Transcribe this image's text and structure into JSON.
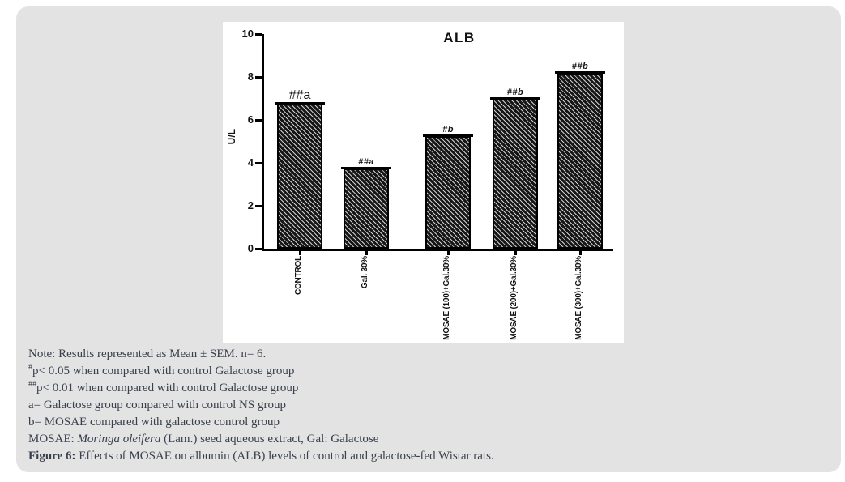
{
  "colors": {
    "page_bg": "#ffffff",
    "card_bg": "#e3e3e3",
    "panel_bg": "#ffffff",
    "bar_dark": "#161616",
    "hatch_light": "#cfcfcf",
    "axis_color": "#000000",
    "chart_text": "#111111",
    "note_text": "#39404d"
  },
  "chart_data": {
    "type": "bar",
    "title": "ALB",
    "ylabel": "U/L",
    "xlabel": "",
    "ylim": [
      0,
      10
    ],
    "yticks": [
      0,
      2,
      4,
      6,
      8,
      10
    ],
    "categories": [
      "CONTROL",
      "Gal. 30%",
      "MOSAE (100)+Gal.30%",
      "MOSAE (200)+Gal.30%",
      "MOSAE (300)+Gal.30%"
    ],
    "values": [
      6.75,
      3.75,
      5.25,
      7.0,
      8.2
    ],
    "annotations": [
      {
        "text": "##a",
        "size": "large"
      },
      {
        "text": "##a",
        "size": "small"
      },
      {
        "text": "#b",
        "size": "small"
      },
      {
        "text": "##b",
        "size": "small"
      },
      {
        "text": "##b",
        "size": "small"
      }
    ],
    "error_bars": "SEM caps at bar tops",
    "bar_fill": "black diagonal hatch",
    "grid": false,
    "legend": "none"
  },
  "notes": {
    "lines": [
      {
        "segments": [
          {
            "t": "Note: Results represented as Mean ± SEM. n= 6."
          }
        ]
      },
      {
        "segments": [
          {
            "t": "#",
            "sup": true
          },
          {
            "t": "p< 0.05 when compared with control Galactose group"
          }
        ]
      },
      {
        "segments": [
          {
            "t": "##",
            "sup": true
          },
          {
            "t": "p< 0.01 when compared with control Galactose group"
          }
        ]
      },
      {
        "segments": [
          {
            "t": "a= Galactose group compared with control NS group"
          }
        ]
      },
      {
        "segments": [
          {
            "t": "b= MOSAE compared with galactose control group"
          }
        ]
      },
      {
        "segments": [
          {
            "t": "MOSAE: "
          },
          {
            "t": "Moringa oleifera",
            "italic": true
          },
          {
            "t": " (Lam.) seed aqueous extract, Gal: Galactose"
          }
        ]
      },
      {
        "segments": [
          {
            "t": "Figure 6:",
            "bold": true
          },
          {
            "t": " Effects of MOSAE on albumin (ALB) levels of control and galactose-fed Wistar rats."
          }
        ]
      }
    ]
  }
}
